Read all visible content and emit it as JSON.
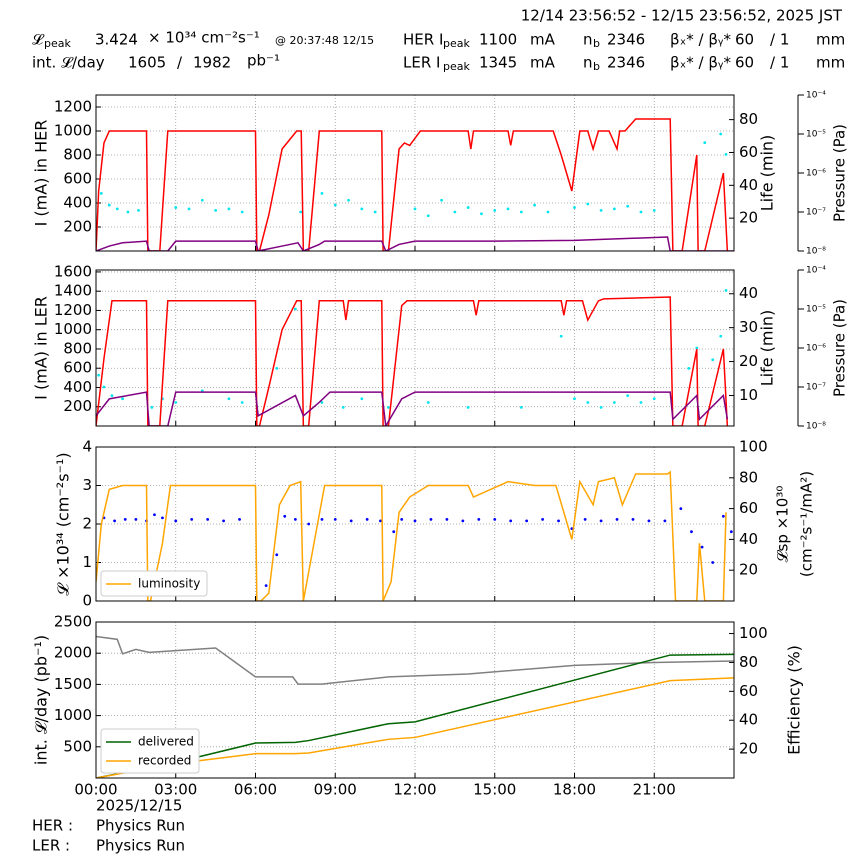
{
  "header": {
    "range": "12/14 23:56:52 - 12/15 23:56:52, 2025 JST",
    "lpeak_label": "𝓛",
    "lpeak_sub": "peak",
    "lpeak_value": "3.424",
    "lpeak_unit": "× 10³⁴ cm⁻²s⁻¹",
    "lpeak_time": "@ 20:37:48 12/15",
    "intl_label": "int. 𝓛/day",
    "intl_recorded": "1605",
    "intl_sep": "/",
    "intl_delivered": "1982",
    "intl_unit": "pb⁻¹",
    "her": {
      "label": "HER I",
      "sub": "peak",
      "value": "1100",
      "unit": "mA",
      "nb": "n",
      "nb_sub": "b",
      "nb_value": "2346",
      "beta": "βₓ* / βᵧ*",
      "beta_x": "60",
      "beta_y": "/ 1",
      "beta_unit": "mm"
    },
    "ler": {
      "label": "LER I",
      "sub": "peak",
      "value": "1345",
      "unit": "mA",
      "nb": "n",
      "nb_sub": "b",
      "nb_value": "2346",
      "beta": "βₓ* / βᵧ*",
      "beta_x": "60",
      "beta_y": "/ 1",
      "beta_unit": "mm"
    }
  },
  "footer": {
    "date": "2025/12/15",
    "her_label": "HER :",
    "her_mode": "Physics Run",
    "ler_label": "LER :",
    "ler_mode": "Physics Run"
  },
  "chart_data": [
    {
      "type": "line",
      "ylabel": "I (mA) in HER",
      "y2label": "Life (min)",
      "y3label": "Pressure (Pa)",
      "xlim": [
        0,
        24
      ],
      "ylim": [
        0,
        1300
      ],
      "yticks": [
        200,
        400,
        600,
        800,
        1000,
        1200
      ],
      "y2lim": [
        0,
        95
      ],
      "y2ticks": [
        20,
        40,
        60,
        80
      ],
      "y3lim": [
        1e-08,
        0.0001
      ],
      "y3scale": "log",
      "y3ticks": [
        {
          "value": 1e-08,
          "label": "10⁻⁸"
        },
        {
          "value": 1e-07,
          "label": "10⁻⁷"
        },
        {
          "value": 1e-06,
          "label": "10⁻⁶"
        },
        {
          "value": 1e-05,
          "label": "10⁻⁵"
        },
        {
          "value": 0.0001,
          "label": "10⁻⁴"
        }
      ],
      "grid": true,
      "series": [
        {
          "color": "#00e5ee",
          "axis": "y3",
          "mode": "scatter",
          "x": [
            0.2,
            0.5,
            0.8,
            1.2,
            1.6,
            3.0,
            3.5,
            4.0,
            4.5,
            5.0,
            5.5,
            7.7,
            8.5,
            9.0,
            9.5,
            10.0,
            10.5,
            12.0,
            12.5,
            13.0,
            13.5,
            14.0,
            14.5,
            15.0,
            15.5,
            16.0,
            16.5,
            17.0,
            18.0,
            18.5,
            19.0,
            19.5,
            20.0,
            20.5,
            21.0,
            22.9,
            23.5,
            23.7
          ],
          "values": [
            3e-07,
            1.5e-07,
            1.2e-07,
            1e-07,
            1.1e-07,
            1.3e-07,
            1.2e-07,
            2e-07,
            1.1e-07,
            1.2e-07,
            1e-07,
            1e-07,
            3e-07,
            1.5e-07,
            2e-07,
            1.2e-07,
            1e-07,
            1.2e-07,
            8e-08,
            2e-07,
            1e-07,
            1.3e-07,
            9e-08,
            1.1e-07,
            1.2e-07,
            1e-07,
            1.5e-07,
            1e-07,
            1.3e-07,
            1.6e-07,
            1.1e-07,
            1.2e-07,
            1.4e-07,
            1e-07,
            1.1e-07,
            6e-06,
            1e-05,
            3e-06
          ]
        },
        {
          "color": "#ff0000",
          "axis": "y",
          "mode": "line",
          "x": [
            0,
            0.1,
            0.3,
            0.5,
            1.9,
            1.95,
            2.05,
            2.4,
            2.7,
            6.0,
            6.05,
            6.15,
            6.5,
            7.0,
            7.55,
            7.72,
            7.8,
            8.0,
            8.4,
            10.75,
            10.8,
            10.9,
            11.0,
            11.4,
            11.6,
            11.8,
            12.2,
            14.0,
            14.1,
            14.2,
            15.5,
            15.6,
            15.7,
            17.2,
            17.5,
            17.9,
            18.2,
            18.5,
            18.7,
            18.9,
            19.3,
            19.6,
            19.7,
            19.9,
            20.3,
            21.5,
            21.6,
            21.7,
            22.05,
            22.6,
            22.65,
            22.9,
            23.6,
            23.75
          ],
          "values": [
            0,
            500,
            900,
            1000,
            1000,
            0,
            0,
            0,
            1000,
            1000,
            0,
            0,
            300,
            850,
            1000,
            1000,
            0,
            0,
            1000,
            1000,
            0,
            0,
            0,
            850,
            900,
            880,
            1000,
            1000,
            850,
            1000,
            1000,
            880,
            1000,
            1000,
            800,
            500,
            1000,
            1000,
            850,
            1000,
            1000,
            850,
            1000,
            1000,
            1100,
            1100,
            1100,
            0,
            0,
            800,
            0,
            0,
            650,
            0
          ]
        },
        {
          "color": "#800080",
          "axis": "y2",
          "mode": "line",
          "x": [
            0,
            0.5,
            1.0,
            1.9,
            2.0,
            2.7,
            3.0,
            6.0,
            6.1,
            7.0,
            7.6,
            7.8,
            8.4,
            8.6,
            10.75,
            10.9,
            11.4,
            12.0,
            15.0,
            18.0,
            21.5,
            21.6,
            24
          ],
          "values": [
            0,
            3,
            5,
            6,
            0,
            0,
            6,
            6,
            0,
            3,
            5,
            0,
            4,
            6,
            6,
            0,
            4,
            6,
            6,
            6.5,
            8.5,
            0,
            0
          ]
        }
      ]
    },
    {
      "type": "line",
      "ylabel": "I (mA) in LER",
      "y2label": "Life (min)",
      "y3label": "Pressure (Pa)",
      "xlim": [
        0,
        24
      ],
      "ylim": [
        0,
        1620
      ],
      "yticks": [
        200,
        400,
        600,
        800,
        1000,
        1200,
        1400,
        1600
      ],
      "y2lim": [
        1,
        47
      ],
      "y2ticks": [
        10,
        20,
        30,
        40
      ],
      "y3lim": [
        1e-08,
        0.0001
      ],
      "y3scale": "log",
      "y3ticks": [
        {
          "value": 1e-08,
          "label": "10⁻⁸"
        },
        {
          "value": 1e-07,
          "label": "10⁻⁷"
        },
        {
          "value": 1e-06,
          "label": "10⁻⁶"
        },
        {
          "value": 1e-05,
          "label": "10⁻⁵"
        },
        {
          "value": 0.0001,
          "label": "10⁻⁴"
        }
      ],
      "grid": true,
      "series": [
        {
          "color": "#00e5ee",
          "axis": "y3",
          "mode": "scatter",
          "x": [
            0.1,
            0.3,
            0.6,
            1.0,
            2.1,
            2.5,
            3.0,
            4.0,
            5.0,
            5.5,
            6.8,
            7.5,
            8.5,
            9.3,
            10.0,
            11.0,
            12.5,
            14.0,
            16.0,
            17.5,
            18.0,
            18.5,
            19.0,
            19.5,
            20.0,
            20.5,
            21.0,
            22.3,
            22.6,
            23.2,
            23.5,
            23.7
          ],
          "values": [
            2e-07,
            1e-07,
            6e-08,
            5e-08,
            3e-08,
            5e-08,
            4e-08,
            8e-08,
            5e-08,
            4e-08,
            3e-07,
            1e-05,
            4e-08,
            3e-08,
            5e-08,
            3e-08,
            4e-08,
            3e-08,
            3e-08,
            2e-06,
            5e-08,
            4e-08,
            3e-08,
            4e-08,
            6e-08,
            4e-08,
            5e-08,
            3e-07,
            1e-06,
            5e-07,
            2e-06,
            3e-05
          ]
        },
        {
          "color": "#ff0000",
          "axis": "y",
          "mode": "line",
          "x": [
            0,
            0.3,
            0.6,
            1.9,
            1.95,
            2.05,
            2.4,
            2.7,
            6.0,
            6.05,
            6.15,
            6.5,
            7.0,
            7.55,
            7.72,
            7.8,
            8.0,
            8.4,
            9.3,
            9.4,
            9.5,
            10.75,
            10.8,
            10.9,
            11.0,
            11.5,
            11.7,
            12.2,
            14.2,
            14.3,
            14.4,
            17.5,
            17.6,
            17.7,
            18.3,
            18.5,
            18.9,
            19.1,
            21.6,
            21.7,
            22.05,
            22.6,
            22.65,
            22.9,
            23.6,
            23.75
          ],
          "values": [
            0,
            700,
            1300,
            1300,
            0,
            0,
            0,
            1300,
            1300,
            0,
            0,
            400,
            1000,
            1300,
            1300,
            0,
            0,
            1300,
            1300,
            1100,
            1300,
            1300,
            0,
            0,
            0,
            1250,
            1300,
            1300,
            1300,
            1150,
            1300,
            1300,
            1150,
            1300,
            1300,
            1100,
            1300,
            1320,
            1340,
            0,
            0,
            800,
            0,
            0,
            800,
            0
          ]
        },
        {
          "color": "#800080",
          "axis": "y2",
          "mode": "line",
          "x": [
            0,
            0.5,
            1.9,
            2.0,
            2.7,
            3.0,
            6.0,
            6.1,
            7.5,
            7.8,
            8.4,
            8.8,
            10.75,
            10.9,
            11.5,
            12.0,
            21.6,
            21.7,
            22.6,
            22.7,
            23.6,
            23.75
          ],
          "values": [
            4,
            9,
            11,
            1,
            1,
            11,
            11,
            4,
            10,
            4,
            8,
            11,
            11,
            1,
            9,
            11,
            11,
            3,
            10,
            3,
            10,
            3
          ]
        }
      ]
    },
    {
      "type": "line",
      "ylabel": "𝓛 ×10³⁴ (cm⁻²s⁻¹)",
      "y2label": [
        "𝓛sp ×10³⁰",
        "(cm⁻²s⁻¹/mA²)"
      ],
      "xlim": [
        0,
        24
      ],
      "ylim": [
        0,
        4
      ],
      "yticks": [
        0,
        1,
        2,
        3,
        4
      ],
      "y2lim": [
        0,
        100
      ],
      "y2ticks": [
        20,
        40,
        60,
        80,
        100
      ],
      "grid": true,
      "legend": "lower left",
      "series": [
        {
          "color": "#0000ff",
          "axis": "y2",
          "mode": "scatter",
          "x": [
            0.3,
            0.7,
            1.1,
            1.5,
            1.9,
            2.2,
            2.5,
            3.0,
            3.6,
            4.2,
            4.8,
            5.4,
            6.4,
            6.8,
            7.1,
            7.5,
            8.0,
            8.5,
            9.0,
            9.6,
            10.2,
            10.7,
            11.2,
            11.5,
            12.0,
            12.6,
            13.2,
            13.8,
            14.4,
            15.0,
            15.6,
            16.2,
            16.8,
            17.4,
            17.9,
            18.4,
            19.0,
            19.6,
            20.2,
            20.8,
            21.4,
            22.0,
            22.4,
            22.8,
            23.2,
            23.6,
            23.9
          ],
          "values": [
            54,
            52,
            53,
            53,
            52,
            56,
            54,
            52,
            53,
            53,
            52,
            53,
            10,
            30,
            55,
            53,
            50,
            53,
            53,
            52,
            53,
            52,
            45,
            53,
            52,
            53,
            53,
            52,
            53,
            53,
            52,
            52,
            53,
            52,
            47,
            53,
            52,
            53,
            53,
            52,
            52,
            60,
            45,
            35,
            25,
            55,
            45
          ]
        },
        {
          "name": "luminosity",
          "color": "#ffa500",
          "axis": "y",
          "mode": "line",
          "x": [
            0,
            0.2,
            0.5,
            1.0,
            1.9,
            1.95,
            2.05,
            2.5,
            2.8,
            6.0,
            6.05,
            6.2,
            6.5,
            6.9,
            7.3,
            7.7,
            7.8,
            8.2,
            8.6,
            10.75,
            10.8,
            11.1,
            11.4,
            11.8,
            12.5,
            14.0,
            14.2,
            15.5,
            16.5,
            17.3,
            17.9,
            18.2,
            18.7,
            18.9,
            19.5,
            19.8,
            20.3,
            21.5,
            21.6,
            21.8,
            22.6,
            22.7,
            22.9,
            23.6,
            23.7
          ],
          "values": [
            0.5,
            2,
            2.9,
            3.0,
            3.0,
            0,
            0,
            1.5,
            3.0,
            3.0,
            0,
            0,
            0.2,
            2.5,
            3.0,
            3.1,
            0,
            1.5,
            3.0,
            3.0,
            0,
            0.5,
            2.3,
            2.7,
            3.0,
            3.0,
            2.7,
            3.1,
            3.0,
            3.0,
            1.6,
            3.1,
            2.5,
            3.1,
            3.2,
            2.5,
            3.3,
            3.3,
            3.35,
            0,
            0,
            1.5,
            0,
            0,
            2.3
          ]
        }
      ]
    },
    {
      "type": "line",
      "ylabel": "int. 𝓛/day (pb⁻¹)",
      "y2label": "Efficiency (%)",
      "xlim": [
        0,
        24
      ],
      "ylim": [
        0,
        2500
      ],
      "yticks": [
        500,
        1000,
        1500,
        2000,
        2500
      ],
      "y2lim": [
        0,
        108
      ],
      "y2ticks": [
        20,
        40,
        60,
        80,
        100
      ],
      "grid": true,
      "legend": "lower left",
      "xticks": [
        {
          "value": 0,
          "label": "00:00"
        },
        {
          "value": 3,
          "label": "03:00"
        },
        {
          "value": 6,
          "label": "06:00"
        },
        {
          "value": 9,
          "label": "09:00"
        },
        {
          "value": 12,
          "label": "12:00"
        },
        {
          "value": 15,
          "label": "15:00"
        },
        {
          "value": 18,
          "label": "18:00"
        },
        {
          "value": 21,
          "label": "21:00"
        }
      ],
      "series": [
        {
          "color": "#808080",
          "axis": "y2",
          "mode": "line",
          "x": [
            0,
            0.8,
            1.0,
            1.5,
            2,
            4.5,
            6,
            7.4,
            7.6,
            8.5,
            9,
            11,
            14,
            18,
            21,
            24
          ],
          "values": [
            98,
            96,
            86,
            89,
            87,
            90,
            70,
            70,
            65,
            65,
            66,
            70,
            72,
            78,
            80,
            81
          ]
        },
        {
          "name": "delivered",
          "color": "#006400",
          "axis": "y",
          "mode": "line",
          "x": [
            0,
            3,
            6,
            7.5,
            8,
            11,
            12,
            21.6,
            24
          ],
          "values": [
            0,
            250,
            560,
            570,
            600,
            870,
            900,
            1970,
            1982
          ]
        },
        {
          "name": "recorded",
          "color": "#ffa500",
          "axis": "y",
          "mode": "line",
          "x": [
            0,
            3,
            6,
            7.5,
            8,
            11,
            12,
            21.6,
            24
          ],
          "values": [
            0,
            230,
            390,
            390,
            400,
            620,
            650,
            1560,
            1605
          ]
        }
      ]
    }
  ]
}
